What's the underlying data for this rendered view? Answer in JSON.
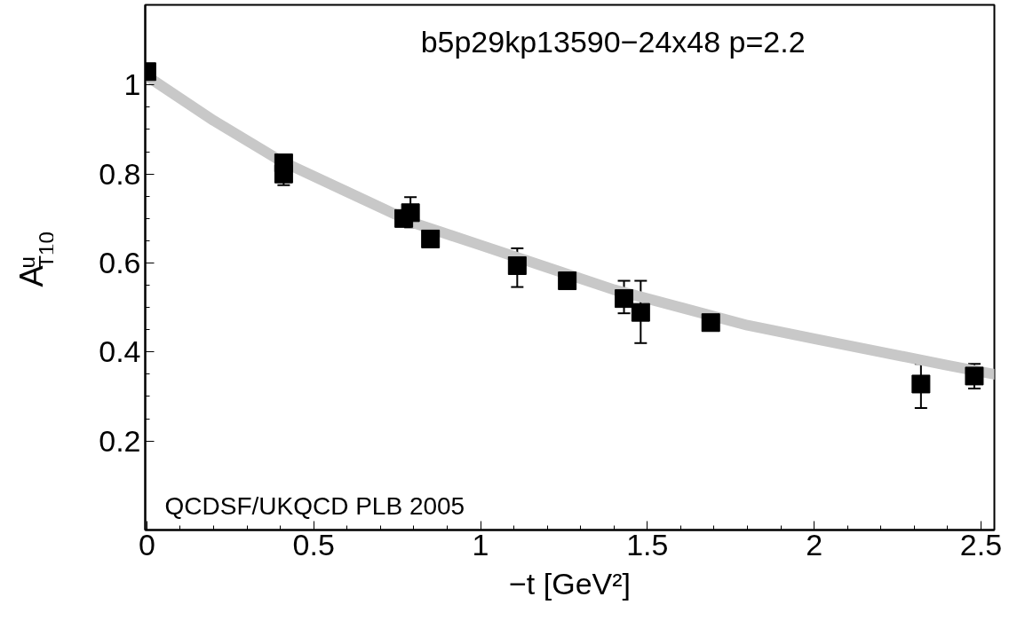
{
  "chart_data": {
    "type": "scatter",
    "xlabel": "−t [GeV²]",
    "ylabel": "A$^{u}$$_{T10}$",
    "annotations": [
      "b5p29kp13590−24x48   p=2.2",
      "QCDSF/UKQCD PLB 2005"
    ],
    "xlim": [
      -0.005,
      2.54
    ],
    "ylim": [
      0,
      1.18
    ],
    "xticks": [
      0,
      0.5,
      1,
      1.5,
      2,
      2.5
    ],
    "yticks": [
      0.2,
      0.4,
      0.6,
      0.8,
      1
    ],
    "grid": false,
    "legend": false,
    "series": [
      {
        "type": "line",
        "color": "#c8c8c8",
        "line_style": "solid",
        "marker": "none",
        "x": [
          0,
          0.2,
          0.4,
          0.6,
          0.8,
          1.0,
          1.2,
          1.4,
          1.6,
          1.8,
          2.0,
          2.2,
          2.4,
          2.54
        ],
        "values": [
          1.02,
          0.92,
          0.83,
          0.76,
          0.69,
          0.64,
          0.59,
          0.54,
          0.5,
          0.46,
          0.43,
          0.4,
          0.37,
          0.35
        ]
      },
      {
        "color": "#000000",
        "marker": "square",
        "x": [
          0,
          0.41,
          0.41,
          0.77,
          0.79,
          0.85,
          1.11,
          1.26,
          1.43,
          1.48,
          1.69,
          2.32,
          2.48
        ],
        "values": [
          1.03,
          0.825,
          0.8,
          0.7,
          0.713,
          0.654,
          0.594,
          0.56,
          0.52,
          0.489,
          0.466,
          0.328,
          0.346
        ],
        "errors": [
          null,
          null,
          [
            0.775,
            0.8
          ],
          null,
          [
            0.68,
            0.748
          ],
          null,
          [
            0.546,
            0.633
          ],
          null,
          [
            0.487,
            0.56
          ],
          [
            0.42,
            0.56
          ],
          null,
          [
            0.274,
            0.373
          ],
          [
            0.318,
            0.373
          ]
        ]
      }
    ]
  }
}
